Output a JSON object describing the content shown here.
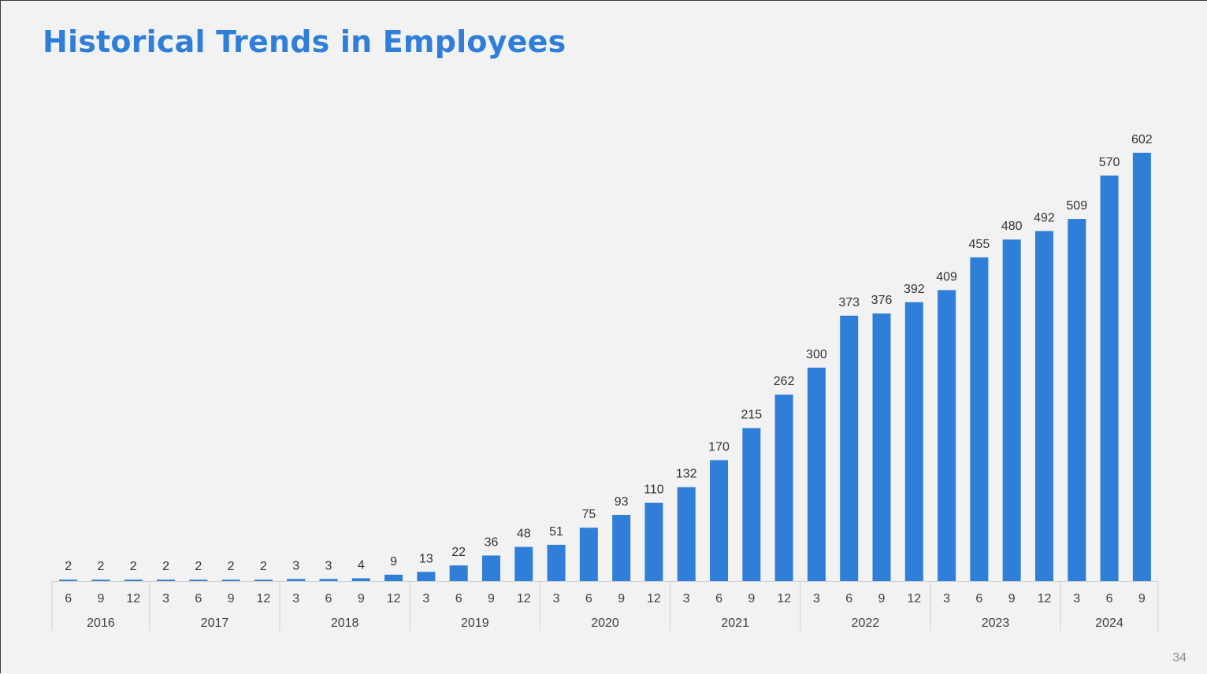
{
  "slide": {
    "title": "Historical Trends in Employees",
    "page_number": "34"
  },
  "chart_data": {
    "type": "bar",
    "title": "",
    "xlabel": "",
    "ylabel": "",
    "ylim": [
      0,
      602
    ],
    "grid": false,
    "bar_color": "#2f7ed8",
    "categories": [
      "6",
      "9",
      "12",
      "3",
      "6",
      "9",
      "12",
      "3",
      "6",
      "9",
      "12",
      "3",
      "6",
      "9",
      "12",
      "3",
      "6",
      "9",
      "12",
      "3",
      "6",
      "9",
      "12",
      "3",
      "6",
      "9",
      "12",
      "3",
      "6",
      "9",
      "12",
      "3",
      "6",
      "9"
    ],
    "years": [
      {
        "label": "2016",
        "count": 3
      },
      {
        "label": "2017",
        "count": 4
      },
      {
        "label": "2018",
        "count": 4
      },
      {
        "label": "2019",
        "count": 4
      },
      {
        "label": "2020",
        "count": 4
      },
      {
        "label": "2021",
        "count": 4
      },
      {
        "label": "2022",
        "count": 4
      },
      {
        "label": "2023",
        "count": 4
      },
      {
        "label": "2024",
        "count": 3
      }
    ],
    "values": [
      2,
      2,
      2,
      2,
      2,
      2,
      2,
      3,
      3,
      4,
      9,
      13,
      22,
      36,
      48,
      51,
      75,
      93,
      110,
      132,
      170,
      215,
      262,
      300,
      373,
      376,
      392,
      409,
      455,
      480,
      492,
      509,
      570,
      602
    ]
  }
}
